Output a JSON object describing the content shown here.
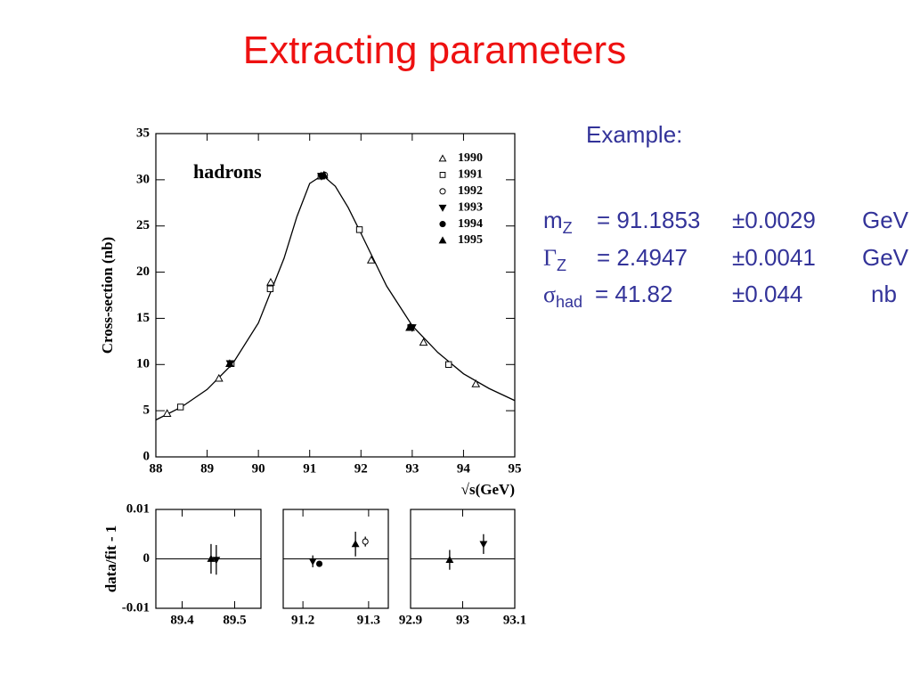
{
  "slide": {
    "title": "Extracting parameters",
    "example": "Example:",
    "parameters": [
      {
        "symbol": "m",
        "sub": "Z",
        "value": "= 91.1853",
        "error": "±0.0029",
        "unit": "GeV"
      },
      {
        "symbol": "Γ",
        "sub": "Z",
        "value": "= 2.4947",
        "error": "±0.0041",
        "unit": "GeV"
      },
      {
        "symbol": "σ",
        "sub": "had",
        "value": "= 41.82",
        "error": "±0.044",
        "unit": "nb"
      }
    ]
  },
  "chart_data": [
    {
      "type": "scatter",
      "annotation": "hadrons",
      "xlabel": "√s(GeV)",
      "ylabel": "Cross-section (nb)",
      "xlim": [
        88,
        95
      ],
      "xticks": [
        88,
        89,
        90,
        91,
        92,
        93,
        94,
        95
      ],
      "ylim": [
        0,
        35
      ],
      "yticks": [
        0,
        5,
        10,
        15,
        20,
        25,
        30,
        35
      ],
      "color": "#000000",
      "curve": {
        "x": [
          88,
          88.5,
          89,
          89.5,
          90,
          90.5,
          90.75,
          91,
          91.25,
          91.5,
          91.75,
          92,
          92.5,
          93,
          93.5,
          94,
          94.5,
          95
        ],
        "values": [
          4.0,
          5.4,
          7.3,
          10.1,
          14.5,
          21.5,
          26,
          29.6,
          30.5,
          29.3,
          27,
          24.2,
          18.5,
          14.2,
          11.3,
          9.0,
          7.4,
          6.1
        ]
      },
      "series": [
        {
          "name": "1990",
          "marker": "open-triangle",
          "x": [
            88.22,
            89.23,
            90.24,
            91.22,
            92.2,
            92.97,
            93.22,
            94.24
          ],
          "values": [
            4.7,
            8.5,
            18.9,
            30.4,
            21.3,
            14.0,
            12.4,
            7.9
          ]
        },
        {
          "name": "1991",
          "marker": "open-square",
          "x": [
            88.48,
            89.47,
            90.23,
            91.22,
            91.97,
            92.97,
            93.71
          ],
          "values": [
            5.4,
            10.1,
            18.2,
            30.4,
            24.6,
            14.0,
            10.0
          ]
        },
        {
          "name": "1992",
          "marker": "open-circle",
          "x": [
            91.29
          ],
          "values": [
            30.5
          ]
        },
        {
          "name": "1993",
          "marker": "filled-triangle-down",
          "x": [
            89.45,
            91.23,
            93.0
          ],
          "values": [
            10.1,
            30.4,
            14.0
          ]
        },
        {
          "name": "1994",
          "marker": "filled-circle",
          "x": [
            91.24
          ],
          "values": [
            30.4
          ]
        },
        {
          "name": "1995",
          "marker": "filled-triangle",
          "x": [
            89.44,
            91.28,
            92.95
          ],
          "values": [
            10.1,
            30.5,
            14.0
          ]
        }
      ]
    },
    {
      "type": "scatter",
      "ylabel": "data/fit - 1",
      "xlim": [
        89.35,
        89.55
      ],
      "xticks": [
        89.4,
        89.5
      ],
      "ylim": [
        -0.01,
        0.01
      ],
      "yticks": [
        -0.01,
        0,
        0.01
      ],
      "refline": 0,
      "color": "#000000",
      "series": [
        {
          "marker": "filled-triangle",
          "x": [
            89.455
          ],
          "values": [
            0
          ],
          "errors": [
            0.003
          ]
        },
        {
          "marker": "filled-triangle-down",
          "x": [
            89.465
          ],
          "values": [
            -0.0002
          ],
          "errors": [
            0.003
          ]
        }
      ]
    },
    {
      "type": "scatter",
      "xlim": [
        91.17,
        91.33
      ],
      "xticks": [
        91.2,
        91.3
      ],
      "ylim": [
        -0.01,
        0.01
      ],
      "refline": 0,
      "color": "#000000",
      "series": [
        {
          "marker": "filled-triangle-down",
          "x": [
            91.215
          ],
          "values": [
            -0.0005
          ],
          "errors": [
            0.0012
          ]
        },
        {
          "marker": "filled-circle",
          "x": [
            91.225
          ],
          "values": [
            -0.001
          ],
          "errors": [
            0.0003
          ]
        },
        {
          "marker": "filled-triangle",
          "x": [
            91.28
          ],
          "values": [
            0.003
          ],
          "errors": [
            0.0025
          ]
        },
        {
          "marker": "open-circle",
          "x": [
            91.295
          ],
          "values": [
            0.0035
          ],
          "errors": [
            0.001
          ]
        }
      ]
    },
    {
      "type": "scatter",
      "xlim": [
        92.9,
        93.1
      ],
      "xticks": [
        92.9,
        93,
        93.1
      ],
      "ylim": [
        -0.01,
        0.01
      ],
      "refline": 0,
      "color": "#000000",
      "series": [
        {
          "marker": "filled-triangle",
          "x": [
            92.975
          ],
          "values": [
            -0.0002
          ],
          "errors": [
            0.002
          ]
        },
        {
          "marker": "filled-triangle-down",
          "x": [
            93.04
          ],
          "values": [
            0.003
          ],
          "errors": [
            0.002
          ]
        }
      ]
    }
  ]
}
